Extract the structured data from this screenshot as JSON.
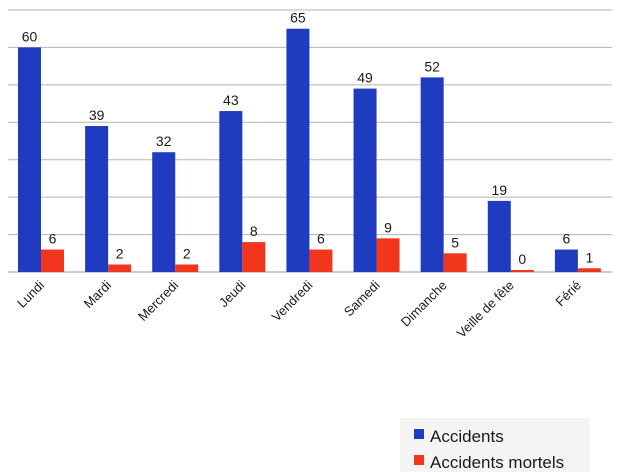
{
  "chart_data": {
    "type": "bar",
    "categories": [
      "Lundi",
      "Mardi",
      "Mercredi",
      "Jeudi",
      "Vendredi",
      "Samedi",
      "Dimanche",
      "Veille de fête",
      "Férié"
    ],
    "series": [
      {
        "name": "Accidents",
        "values": [
          60,
          39,
          32,
          43,
          65,
          49,
          52,
          19,
          6
        ],
        "color": "#1f3bbf"
      },
      {
        "name": "Accidents mortels",
        "values": [
          6,
          2,
          2,
          8,
          6,
          9,
          5,
          0,
          1
        ],
        "color": "#f2361d"
      }
    ],
    "ylim": [
      0,
      70
    ],
    "grid": true,
    "legend_position": "bottom-right",
    "xlabel": "",
    "ylabel": ""
  }
}
